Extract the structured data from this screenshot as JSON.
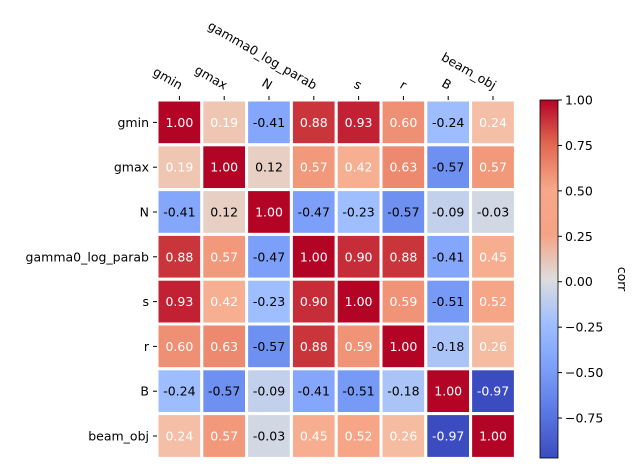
{
  "chart_data": {
    "type": "heatmap",
    "title": "",
    "variables": [
      "gmin",
      "gmax",
      "N",
      "gamma0_log_parab",
      "s",
      "r",
      "B",
      "beam_obj"
    ],
    "values": [
      [
        1.0,
        0.19,
        -0.41,
        0.88,
        0.93,
        0.6,
        -0.24,
        0.24
      ],
      [
        0.19,
        1.0,
        0.12,
        0.57,
        0.42,
        0.63,
        -0.57,
        0.57
      ],
      [
        -0.41,
        0.12,
        1.0,
        -0.47,
        -0.23,
        -0.57,
        -0.09,
        -0.03
      ],
      [
        0.88,
        0.57,
        -0.47,
        1.0,
        0.9,
        0.88,
        -0.41,
        0.45
      ],
      [
        0.93,
        0.42,
        -0.23,
        0.9,
        1.0,
        0.59,
        -0.51,
        0.52
      ],
      [
        0.6,
        0.63,
        -0.57,
        0.88,
        0.59,
        1.0,
        -0.18,
        0.26
      ],
      [
        -0.24,
        -0.57,
        -0.09,
        -0.41,
        -0.51,
        -0.18,
        1.0,
        -0.97
      ],
      [
        0.24,
        0.57,
        -0.03,
        0.45,
        0.52,
        0.26,
        -0.97,
        1.0
      ]
    ],
    "colormap": "coolwarm",
    "value_range": [
      -0.97,
      1.0
    ],
    "x_ticks_position": "top",
    "colorbar": {
      "label": "corr",
      "ticks": [
        "1.00",
        "0.75",
        "0.50",
        "0.25",
        "0.00",
        "−0.25",
        "−0.50",
        "−0.75"
      ],
      "tick_values": [
        1.0,
        0.75,
        0.5,
        0.25,
        0.0,
        -0.25,
        -0.5,
        -0.75
      ]
    }
  }
}
